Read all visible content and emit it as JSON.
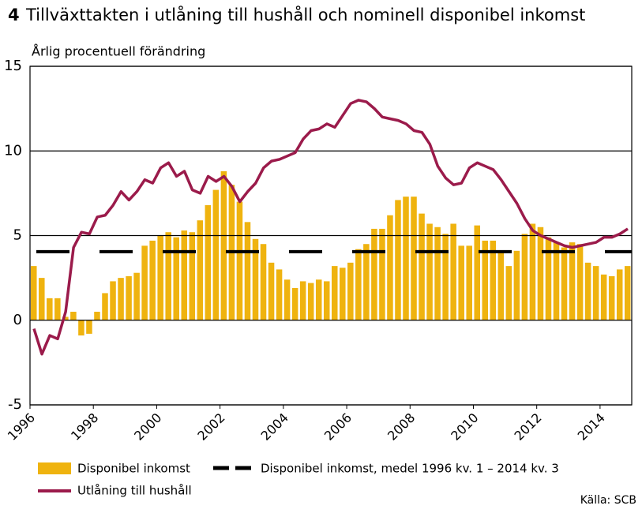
{
  "chart_data": {
    "type": "bar-line",
    "figure_number": "4",
    "title": "Tillväxttakten i utlåning till hushåll och nominell disponibel inkomst",
    "subtitle": "Årlig procentuell förändring",
    "source": "Källa: SCB",
    "x": [
      1996,
      1996.25,
      1996.5,
      1996.75,
      1997,
      1997.25,
      1997.5,
      1997.75,
      1998,
      1998.25,
      1998.5,
      1998.75,
      1999,
      1999.25,
      1999.5,
      1999.75,
      2000,
      2000.25,
      2000.5,
      2000.75,
      2001,
      2001.25,
      2001.5,
      2001.75,
      2002,
      2002.25,
      2002.5,
      2002.75,
      2003,
      2003.25,
      2003.5,
      2003.75,
      2004,
      2004.25,
      2004.5,
      2004.75,
      2005,
      2005.25,
      2005.5,
      2005.75,
      2006,
      2006.25,
      2006.5,
      2006.75,
      2007,
      2007.25,
      2007.5,
      2007.75,
      2008,
      2008.25,
      2008.5,
      2008.75,
      2009,
      2009.25,
      2009.5,
      2009.75,
      2010,
      2010.25,
      2010.5,
      2010.75,
      2011,
      2011.25,
      2011.5,
      2011.75,
      2012,
      2012.25,
      2012.5,
      2012.75,
      2013,
      2013.25,
      2013.5,
      2013.75,
      2014,
      2014.25,
      2014.5,
      2014.75
    ],
    "xlim": [
      1996,
      2015
    ],
    "xticks": [
      1996,
      1998,
      2000,
      2002,
      2004,
      2006,
      2008,
      2010,
      2012,
      2014
    ],
    "ylim": [
      -5,
      15
    ],
    "yticks": [
      -5,
      0,
      5,
      10,
      15
    ],
    "grid": true,
    "series": [
      {
        "name": "Disponibel inkomst",
        "type": "bar",
        "color": "#efb30f",
        "values": [
          3.2,
          2.5,
          1.3,
          1.3,
          0.2,
          0.5,
          -0.9,
          -0.8,
          0.5,
          1.6,
          2.3,
          2.5,
          2.6,
          2.8,
          4.4,
          4.7,
          5.0,
          5.2,
          4.9,
          5.3,
          5.2,
          5.9,
          6.8,
          7.7,
          8.8,
          8.0,
          7.0,
          5.8,
          4.8,
          4.5,
          3.4,
          3.0,
          2.4,
          1.9,
          2.3,
          2.2,
          2.4,
          2.3,
          3.2,
          3.1,
          3.4,
          4.2,
          4.5,
          5.4,
          5.4,
          6.2,
          7.1,
          7.3,
          7.3,
          6.3,
          5.7,
          5.5,
          5.1,
          5.7,
          4.4,
          4.4,
          5.6,
          4.7,
          4.7,
          4.1,
          3.2,
          4.1,
          5.1,
          5.7,
          5.5,
          4.9,
          4.6,
          4.3,
          4.6,
          4.5,
          3.4,
          3.2,
          2.7,
          2.6,
          3.0,
          3.2
        ]
      },
      {
        "name": "Utlåning till hushåll",
        "type": "line",
        "color": "#9b1b4b",
        "values": [
          -0.5,
          -2.0,
          -0.9,
          -1.1,
          0.5,
          4.3,
          5.2,
          5.1,
          6.1,
          6.2,
          6.8,
          7.6,
          7.1,
          7.6,
          8.3,
          8.1,
          9.0,
          9.3,
          8.5,
          8.8,
          7.7,
          7.5,
          8.5,
          8.2,
          8.5,
          7.9,
          7.0,
          7.6,
          8.1,
          9.0,
          9.4,
          9.5,
          9.7,
          9.9,
          10.7,
          11.2,
          11.3,
          11.6,
          11.4,
          12.1,
          12.8,
          13.0,
          12.9,
          12.5,
          12.0,
          11.9,
          11.8,
          11.6,
          11.2,
          11.1,
          10.4,
          9.1,
          8.4,
          8.0,
          8.1,
          9.0,
          9.3,
          9.1,
          8.9,
          8.3,
          7.6,
          6.9,
          6.0,
          5.3,
          5.0,
          4.8,
          4.6,
          4.4,
          4.3,
          4.4,
          4.5,
          4.6,
          4.9,
          4.9,
          5.1,
          5.4
        ]
      }
    ],
    "reference_line": {
      "name": "Disponibel inkomst, medel 1996 kv. 1 – 2014 kv. 3",
      "value": 4.05,
      "color": "#000000"
    }
  }
}
